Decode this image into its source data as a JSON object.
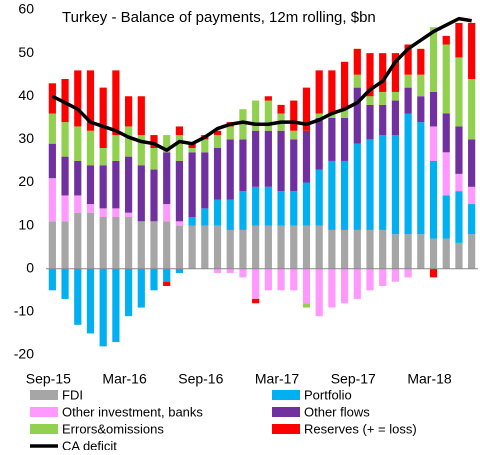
{
  "chart_data": {
    "type": "bar",
    "stacked": true,
    "title": "Turkey - Balance of payments,  12m rolling, $bn",
    "categories": [
      "Sep-15",
      null,
      null,
      null,
      null,
      null,
      "Mar-16",
      null,
      null,
      null,
      null,
      null,
      "Sep-16",
      null,
      null,
      null,
      null,
      null,
      "Mar-17",
      null,
      null,
      null,
      null,
      null,
      "Sep-17",
      null,
      null,
      null,
      null,
      null,
      "Mar-18",
      null,
      null,
      null
    ],
    "ylim": [
      -20,
      60
    ],
    "yticks": [
      -20,
      -10,
      0,
      10,
      20,
      30,
      40,
      50,
      60
    ],
    "grid": false,
    "series": [
      {
        "name": "FDI",
        "color": "#a6a6a6",
        "values": [
          11,
          11,
          13,
          13,
          12,
          12,
          12,
          11,
          11,
          11,
          10,
          10,
          10,
          10,
          9,
          9,
          10,
          10,
          10,
          10,
          10,
          10,
          9,
          9,
          9,
          9,
          9,
          8,
          8,
          8,
          7,
          7,
          6,
          8
        ]
      },
      {
        "name": "Portfolio",
        "color": "#00b0f0",
        "values": [
          -5,
          -7,
          -13,
          -15,
          -18,
          -17,
          -11,
          -9,
          -5,
          -3,
          -1,
          2,
          4,
          6,
          7,
          9,
          9,
          9,
          8,
          8,
          10,
          13,
          16,
          16,
          20,
          21,
          22,
          23,
          28,
          26,
          18,
          10,
          12,
          7
        ]
      },
      {
        "name": "Other investment, banks",
        "color": "#ff99ff",
        "values": [
          10,
          6,
          4,
          2,
          2,
          2,
          1,
          0,
          0,
          4,
          1,
          0,
          0,
          -1,
          -1,
          -2,
          -7,
          -5,
          -5,
          -5,
          -8,
          -11,
          -9,
          -8,
          -7,
          -5,
          -4,
          -3,
          -2,
          0,
          8,
          10,
          4,
          4
        ]
      },
      {
        "name": "Other flows",
        "color": "#7030a0",
        "values": [
          8,
          9,
          8,
          9,
          10,
          11,
          13,
          13,
          12,
          12,
          14,
          15,
          13,
          12,
          14,
          12,
          13,
          13,
          14,
          12,
          12,
          12,
          10,
          10,
          13,
          8,
          7,
          8,
          6,
          6,
          8,
          9,
          11,
          11
        ]
      },
      {
        "name": "Errors&omissions",
        "color": "#92d050",
        "values": [
          7,
          8,
          8,
          8,
          4,
          6,
          7,
          7,
          5,
          4,
          6,
          1,
          3,
          3,
          3,
          7,
          7,
          7,
          4,
          2,
          -1,
          1,
          1,
          2,
          3,
          2,
          3,
          2,
          3,
          5,
          15,
          16,
          16,
          14
        ]
      },
      {
        "name": "Reserves (+ = loss)",
        "color": "#ff0000",
        "values": [
          7,
          10,
          13,
          14,
          14,
          15,
          7,
          9,
          3,
          -1,
          2,
          1,
          1,
          1,
          1,
          0,
          -1,
          1,
          2,
          7,
          10,
          10,
          10,
          11,
          6,
          10,
          9,
          9,
          7,
          6,
          -2,
          2,
          8,
          13
        ]
      },
      {
        "name": "CA deficit",
        "color": "#000000",
        "type": "line",
        "values": [
          40,
          38.5,
          37,
          34,
          33,
          32,
          30.5,
          29.5,
          29,
          27.5,
          29.5,
          29,
          30.5,
          32.5,
          33.5,
          34,
          33.5,
          33.5,
          34,
          34,
          33.5,
          34.5,
          36,
          37,
          38.5,
          41.5,
          43.5,
          48,
          51,
          53,
          55,
          56.5,
          58,
          57.5
        ]
      }
    ]
  }
}
